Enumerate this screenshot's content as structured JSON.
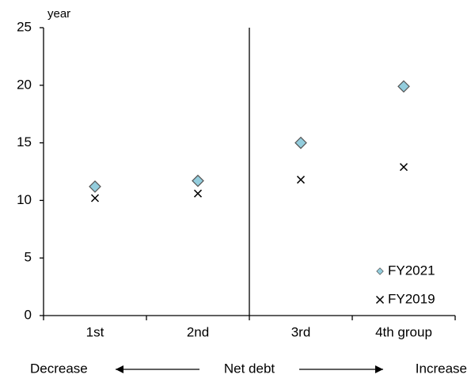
{
  "chart_data": {
    "type": "scatter",
    "y_label": "year",
    "categories": [
      "1st",
      "2nd",
      "3rd",
      "4th group"
    ],
    "series": [
      {
        "name": "FY2021",
        "color": "#93cddd",
        "marker": "diamond",
        "values": [
          11.2,
          11.7,
          15.0,
          19.9
        ]
      },
      {
        "name": "FY2019",
        "color": "#000000",
        "marker": "x",
        "values": [
          10.2,
          10.6,
          11.8,
          12.9
        ]
      }
    ],
    "ylim": [
      0,
      25
    ],
    "yticks": [
      0,
      5,
      10,
      15,
      20,
      25
    ],
    "legend": "lower right",
    "annotations": [
      "Decrease",
      "Net debt",
      "Increase"
    ]
  }
}
